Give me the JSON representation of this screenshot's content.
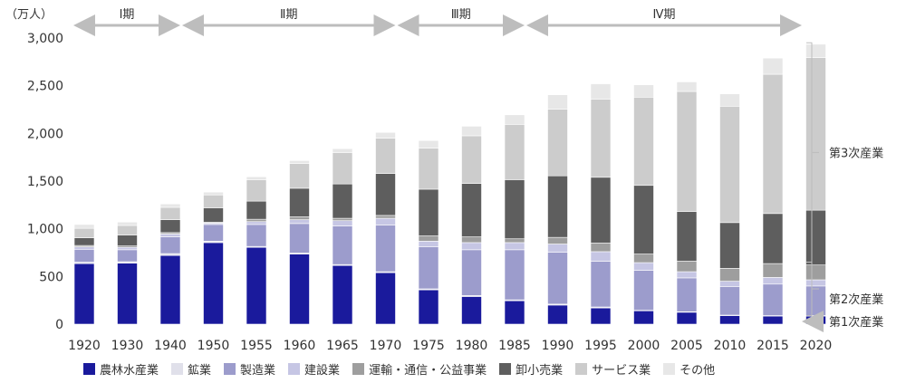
{
  "chart_data": {
    "type": "bar",
    "stacked": true,
    "ylabel": "（万人）",
    "ylim": [
      0,
      3000
    ],
    "yticks": [
      "0",
      "500",
      "1,000",
      "1,500",
      "2,000",
      "2,500",
      "3,000"
    ],
    "categories": [
      "1920",
      "1930",
      "1940",
      "1950",
      "1955",
      "1960",
      "1965",
      "1970",
      "1975",
      "1980",
      "1985",
      "1990",
      "1995",
      "2000",
      "2005",
      "2010",
      "2015",
      "2020"
    ],
    "series": [
      {
        "name": "農林水産業",
        "color": "#1a1a9c",
        "values": [
          635,
          640,
          720,
          855,
          805,
          735,
          615,
          540,
          360,
          290,
          245,
          200,
          170,
          140,
          125,
          90,
          85,
          85
        ]
      },
      {
        "name": "鉱業",
        "color": "#e0e0ea",
        "values": [
          15,
          15,
          20,
          15,
          10,
          10,
          10,
          10,
          10,
          10,
          10,
          10,
          10,
          5,
          5,
          5,
          5,
          5
        ]
      },
      {
        "name": "製造業",
        "color": "#9c9ccc",
        "values": [
          135,
          125,
          175,
          175,
          230,
          310,
          405,
          490,
          440,
          480,
          525,
          545,
          480,
          420,
          355,
          300,
          330,
          310
        ]
      },
      {
        "name": "建設業",
        "color": "#c6c6e4",
        "values": [
          25,
          25,
          30,
          15,
          30,
          40,
          55,
          70,
          60,
          75,
          75,
          85,
          100,
          80,
          65,
          55,
          70,
          65
        ]
      },
      {
        "name": "運輸・通信・公益事業",
        "color": "#9e9e9e",
        "values": [
          15,
          15,
          15,
          10,
          25,
          30,
          25,
          30,
          55,
          60,
          40,
          70,
          90,
          90,
          110,
          135,
          145,
          155
        ]
      },
      {
        "name": "卸小売業",
        "color": "#5e5e5e",
        "values": [
          80,
          115,
          135,
          150,
          190,
          300,
          360,
          440,
          490,
          560,
          620,
          645,
          690,
          720,
          520,
          480,
          525,
          575
        ]
      },
      {
        "name": "サービス業",
        "color": "#cccccc",
        "values": [
          100,
          100,
          130,
          135,
          225,
          260,
          330,
          370,
          430,
          500,
          580,
          700,
          820,
          925,
          1260,
          1220,
          1460,
          1600
        ]
      },
      {
        "name": "その他",
        "color": "#e7e7e7",
        "values": [
          40,
          35,
          35,
          30,
          30,
          30,
          40,
          60,
          80,
          100,
          100,
          150,
          160,
          130,
          100,
          130,
          170,
          140
        ]
      }
    ],
    "periods": [
      {
        "label": "Ⅰ期",
        "from": 0,
        "to": 2
      },
      {
        "label": "Ⅱ期",
        "from": 2,
        "to": 7
      },
      {
        "label": "Ⅲ期",
        "from": 7,
        "to": 10
      },
      {
        "label": "Ⅳ期",
        "from": 10,
        "to": 17
      }
    ],
    "sector_brackets": [
      {
        "label": "第3次産業",
        "from": 650,
        "to": 2950
      },
      {
        "label": "第2次産業",
        "from": 90,
        "to": 650
      },
      {
        "label": "第1次産業",
        "from": 0,
        "to": 90
      }
    ],
    "legend_position": "bottom",
    "grid": false
  }
}
